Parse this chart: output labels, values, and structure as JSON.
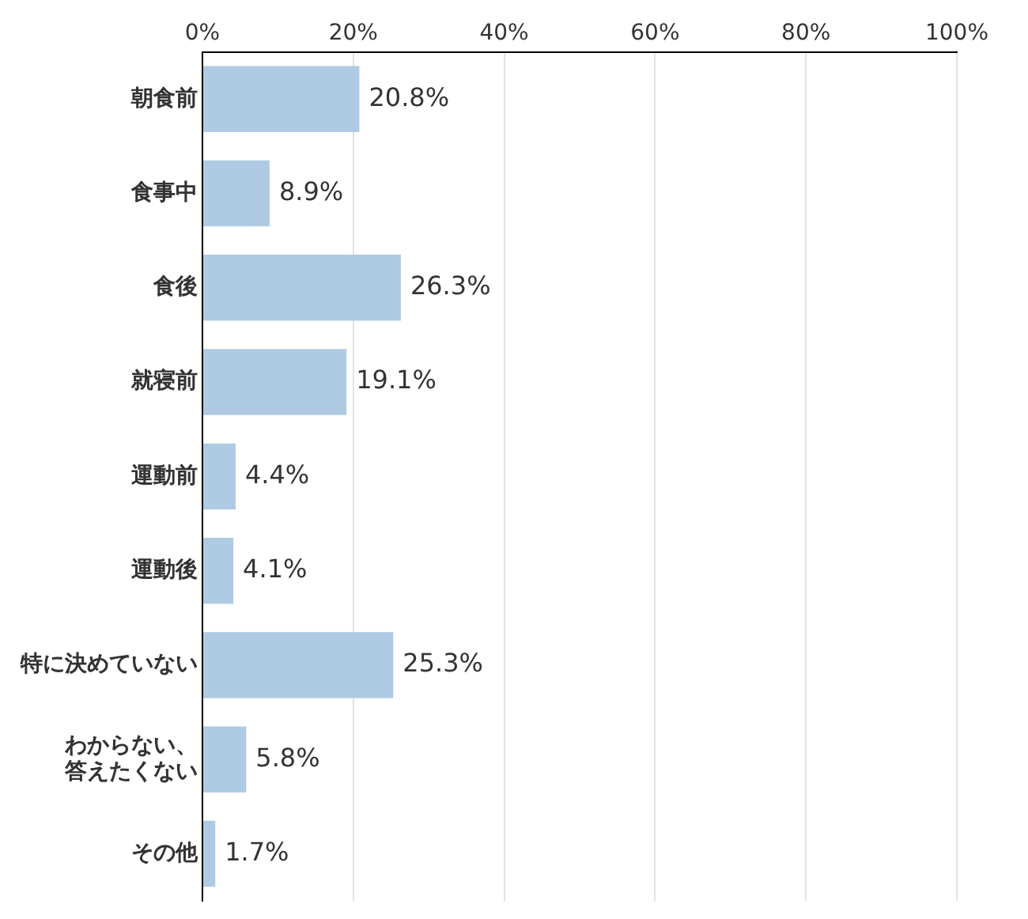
{
  "chart_data": {
    "type": "bar",
    "orientation": "horizontal",
    "categories": [
      "朝食前",
      "食事中",
      "食後",
      "就寝前",
      "運動前",
      "運動後",
      "特に決めていない",
      "わからない、答えたくない",
      "その他"
    ],
    "values": [
      20.8,
      8.9,
      26.3,
      19.1,
      4.4,
      4.1,
      25.3,
      5.8,
      1.7
    ],
    "value_labels": [
      "20.8%",
      "8.9%",
      "26.3%",
      "19.1%",
      "4.4%",
      "4.1%",
      "25.3%",
      "5.8%",
      "1.7%"
    ],
    "color": "#afcbe3",
    "xlim": [
      0,
      100
    ],
    "xticks": [
      {
        "value": 0,
        "label": "0%"
      },
      {
        "value": 20,
        "label": "20%"
      },
      {
        "value": 40,
        "label": "40%"
      },
      {
        "value": 60,
        "label": "60%"
      },
      {
        "value": 80,
        "label": "80%"
      },
      {
        "value": 100,
        "label": "100%"
      }
    ],
    "grid": "x",
    "legend": false
  }
}
